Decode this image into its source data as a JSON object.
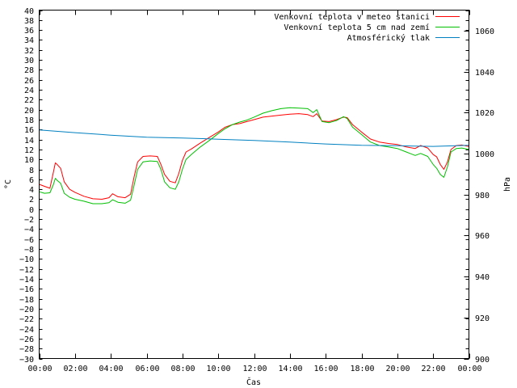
{
  "chart_data": {
    "type": "line",
    "xlabel": "Čas",
    "ylabel_left": "°C",
    "ylabel_right": "hPa",
    "x_ticks": [
      "00:00",
      "02:00",
      "04:00",
      "06:00",
      "08:00",
      "10:00",
      "12:00",
      "14:00",
      "16:00",
      "18:00",
      "20:00",
      "22:00",
      "00:00"
    ],
    "ylim_left": [
      -30,
      40
    ],
    "ylim_right": [
      900,
      1070
    ],
    "y_ticks_left_step": 2,
    "y_ticks_right": [
      900,
      920,
      940,
      960,
      980,
      1000,
      1020,
      1040,
      1060
    ],
    "x_range_hours": [
      0,
      24
    ],
    "grid": false,
    "legend_position": "top-right",
    "series": [
      {
        "name": "Venkovní teplota v meteo stanici",
        "color": "#ff0000",
        "axis": "left",
        "points": [
          [
            0,
            5
          ],
          [
            0.3,
            4.6
          ],
          [
            0.6,
            4.2
          ],
          [
            0.8,
            7.5
          ],
          [
            0.9,
            9.3
          ],
          [
            1.0,
            9.0
          ],
          [
            1.2,
            8.2
          ],
          [
            1.4,
            5.5
          ],
          [
            1.7,
            4.0
          ],
          [
            2.0,
            3.4
          ],
          [
            2.5,
            2.6
          ],
          [
            3.0,
            2.1
          ],
          [
            3.5,
            2.0
          ],
          [
            3.9,
            2.3
          ],
          [
            4.1,
            3.1
          ],
          [
            4.4,
            2.5
          ],
          [
            4.8,
            2.3
          ],
          [
            5.1,
            3.0
          ],
          [
            5.3,
            6.5
          ],
          [
            5.5,
            9.5
          ],
          [
            5.8,
            10.6
          ],
          [
            6.2,
            10.7
          ],
          [
            6.6,
            10.6
          ],
          [
            6.8,
            9.0
          ],
          [
            7.0,
            7.0
          ],
          [
            7.3,
            5.6
          ],
          [
            7.6,
            5.3
          ],
          [
            7.8,
            7.2
          ],
          [
            8.0,
            9.8
          ],
          [
            8.2,
            11.5
          ],
          [
            8.5,
            12.1
          ],
          [
            9.0,
            13.3
          ],
          [
            9.5,
            14.4
          ],
          [
            10.0,
            15.5
          ],
          [
            10.4,
            16.5
          ],
          [
            10.8,
            17.0
          ],
          [
            11.2,
            17.2
          ],
          [
            11.6,
            17.6
          ],
          [
            12.0,
            18.0
          ],
          [
            12.5,
            18.5
          ],
          [
            13.0,
            18.7
          ],
          [
            13.5,
            18.9
          ],
          [
            14.0,
            19.1
          ],
          [
            14.5,
            19.2
          ],
          [
            15.0,
            19.0
          ],
          [
            15.3,
            18.6
          ],
          [
            15.5,
            19.2
          ],
          [
            15.8,
            17.7
          ],
          [
            16.2,
            17.6
          ],
          [
            16.6,
            18.0
          ],
          [
            17.0,
            18.5
          ],
          [
            17.2,
            18.4
          ],
          [
            17.5,
            17.0
          ],
          [
            18.0,
            15.5
          ],
          [
            18.5,
            14.1
          ],
          [
            19.0,
            13.5
          ],
          [
            19.5,
            13.2
          ],
          [
            20.0,
            13.0
          ],
          [
            20.5,
            12.5
          ],
          [
            21.0,
            12.2
          ],
          [
            21.3,
            12.8
          ],
          [
            21.7,
            12.3
          ],
          [
            22.0,
            11.0
          ],
          [
            22.2,
            10.5
          ],
          [
            22.4,
            9.0
          ],
          [
            22.6,
            8.0
          ],
          [
            22.8,
            9.5
          ],
          [
            23.0,
            12.0
          ],
          [
            23.3,
            12.8
          ],
          [
            23.6,
            12.9
          ],
          [
            24.0,
            12.6
          ]
        ]
      },
      {
        "name": "Venkovní teplota 5 cm nad zemí",
        "color": "#00c000",
        "axis": "left",
        "points": [
          [
            0,
            3.5
          ],
          [
            0.3,
            3.2
          ],
          [
            0.6,
            3.3
          ],
          [
            0.8,
            5.0
          ],
          [
            0.9,
            6.2
          ],
          [
            1.0,
            5.8
          ],
          [
            1.2,
            5.2
          ],
          [
            1.4,
            3.2
          ],
          [
            1.7,
            2.4
          ],
          [
            2.0,
            2.0
          ],
          [
            2.5,
            1.6
          ],
          [
            3.0,
            1.1
          ],
          [
            3.5,
            1.1
          ],
          [
            3.9,
            1.3
          ],
          [
            4.1,
            1.9
          ],
          [
            4.4,
            1.4
          ],
          [
            4.8,
            1.2
          ],
          [
            5.1,
            1.8
          ],
          [
            5.3,
            4.8
          ],
          [
            5.5,
            8.0
          ],
          [
            5.8,
            9.5
          ],
          [
            6.2,
            9.7
          ],
          [
            6.6,
            9.6
          ],
          [
            6.8,
            8.0
          ],
          [
            7.0,
            5.5
          ],
          [
            7.3,
            4.3
          ],
          [
            7.6,
            4.0
          ],
          [
            7.8,
            5.5
          ],
          [
            8.0,
            8.0
          ],
          [
            8.2,
            10.0
          ],
          [
            8.5,
            11.0
          ],
          [
            9.0,
            12.5
          ],
          [
            9.5,
            13.8
          ],
          [
            10.0,
            15.2
          ],
          [
            10.4,
            16.2
          ],
          [
            10.8,
            17.0
          ],
          [
            11.2,
            17.5
          ],
          [
            11.6,
            17.9
          ],
          [
            12.0,
            18.5
          ],
          [
            12.5,
            19.3
          ],
          [
            13.0,
            19.8
          ],
          [
            13.5,
            20.2
          ],
          [
            14.0,
            20.4
          ],
          [
            14.5,
            20.3
          ],
          [
            15.0,
            20.2
          ],
          [
            15.3,
            19.4
          ],
          [
            15.5,
            20.0
          ],
          [
            15.8,
            17.6
          ],
          [
            16.2,
            17.4
          ],
          [
            16.6,
            17.8
          ],
          [
            17.0,
            18.6
          ],
          [
            17.2,
            18.2
          ],
          [
            17.5,
            16.5
          ],
          [
            18.0,
            15.0
          ],
          [
            18.5,
            13.5
          ],
          [
            19.0,
            12.8
          ],
          [
            19.5,
            12.5
          ],
          [
            20.0,
            12.2
          ],
          [
            20.5,
            11.5
          ],
          [
            21.0,
            10.8
          ],
          [
            21.3,
            11.2
          ],
          [
            21.7,
            10.6
          ],
          [
            22.0,
            9.0
          ],
          [
            22.2,
            8.2
          ],
          [
            22.4,
            7.0
          ],
          [
            22.6,
            6.4
          ],
          [
            22.8,
            8.5
          ],
          [
            23.0,
            11.5
          ],
          [
            23.3,
            12.2
          ],
          [
            23.6,
            12.3
          ],
          [
            24.0,
            12.0
          ]
        ]
      },
      {
        "name": "Atmosférický tlak",
        "color": "#0080c0",
        "axis": "right",
        "points": [
          [
            0,
            1011.5
          ],
          [
            2,
            1010.2
          ],
          [
            4,
            1009.0
          ],
          [
            6,
            1008.0
          ],
          [
            8,
            1007.6
          ],
          [
            10,
            1007.0
          ],
          [
            12,
            1006.4
          ],
          [
            14,
            1005.6
          ],
          [
            16,
            1004.7
          ],
          [
            18,
            1004.0
          ],
          [
            20,
            1003.8
          ],
          [
            22,
            1003.5
          ],
          [
            24,
            1004.0
          ]
        ]
      }
    ]
  }
}
